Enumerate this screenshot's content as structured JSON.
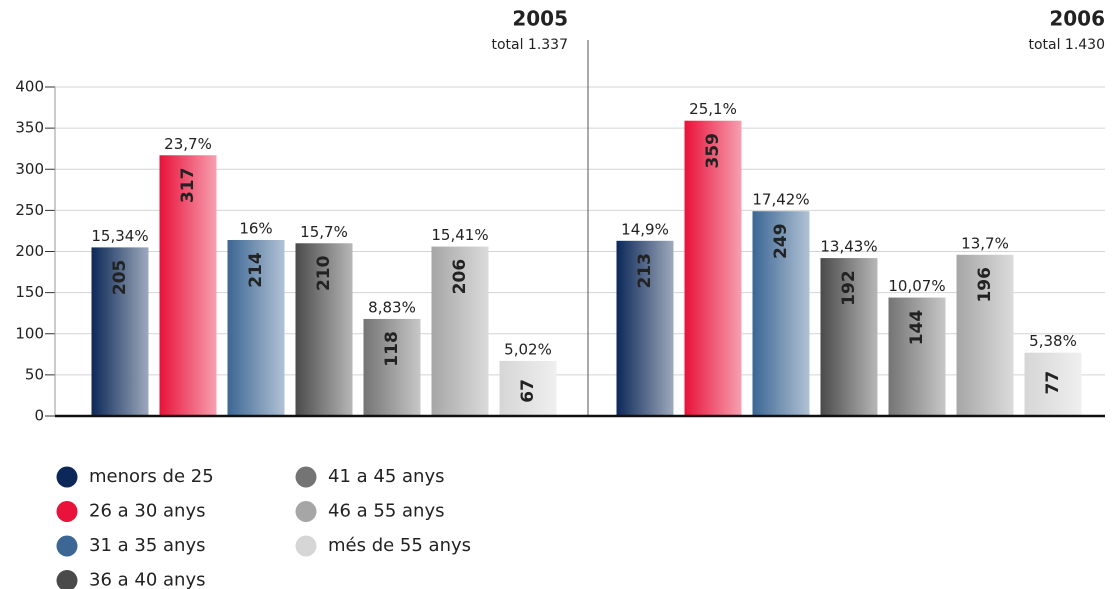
{
  "chart_data": {
    "type": "bar",
    "categories": [
      "2005",
      "2006"
    ],
    "totals": [
      "total 1.337",
      "total 1.430"
    ],
    "series": [
      {
        "name": "menors de 25",
        "color": "#0c2858",
        "values": [
          205,
          213
        ],
        "share_labels": [
          "15,34%",
          "14,9%"
        ]
      },
      {
        "name": "26 a 30 anys",
        "color": "#e8123a",
        "values": [
          317,
          359
        ],
        "share_labels": [
          "23,7%",
          "25,1%"
        ]
      },
      {
        "name": "31 a 35 anys",
        "color": "#3c6694",
        "values": [
          214,
          249
        ],
        "share_labels": [
          "16%",
          "17,42%"
        ]
      },
      {
        "name": "36 a 40 anys",
        "color": "#4a4a4a",
        "values": [
          210,
          192
        ],
        "share_labels": [
          "15,7%",
          "13,43%"
        ]
      },
      {
        "name": "41 a 45 anys",
        "color": "#747474",
        "values": [
          118,
          144
        ],
        "share_labels": [
          "8,83%",
          "10,07%"
        ]
      },
      {
        "name": "46 a 55 anys",
        "color": "#a6a6a6",
        "values": [
          206,
          196
        ],
        "share_labels": [
          "15,41%",
          "13,7%"
        ]
      },
      {
        "name": "més de 55 anys",
        "color": "#d6d6d6",
        "values": [
          67,
          77
        ],
        "share_labels": [
          "5,02%",
          "5,38%"
        ]
      }
    ],
    "ylim": [
      0,
      400
    ],
    "yticks": [
      0,
      50,
      100,
      150,
      200,
      250,
      300,
      350,
      400
    ],
    "grid": true
  }
}
